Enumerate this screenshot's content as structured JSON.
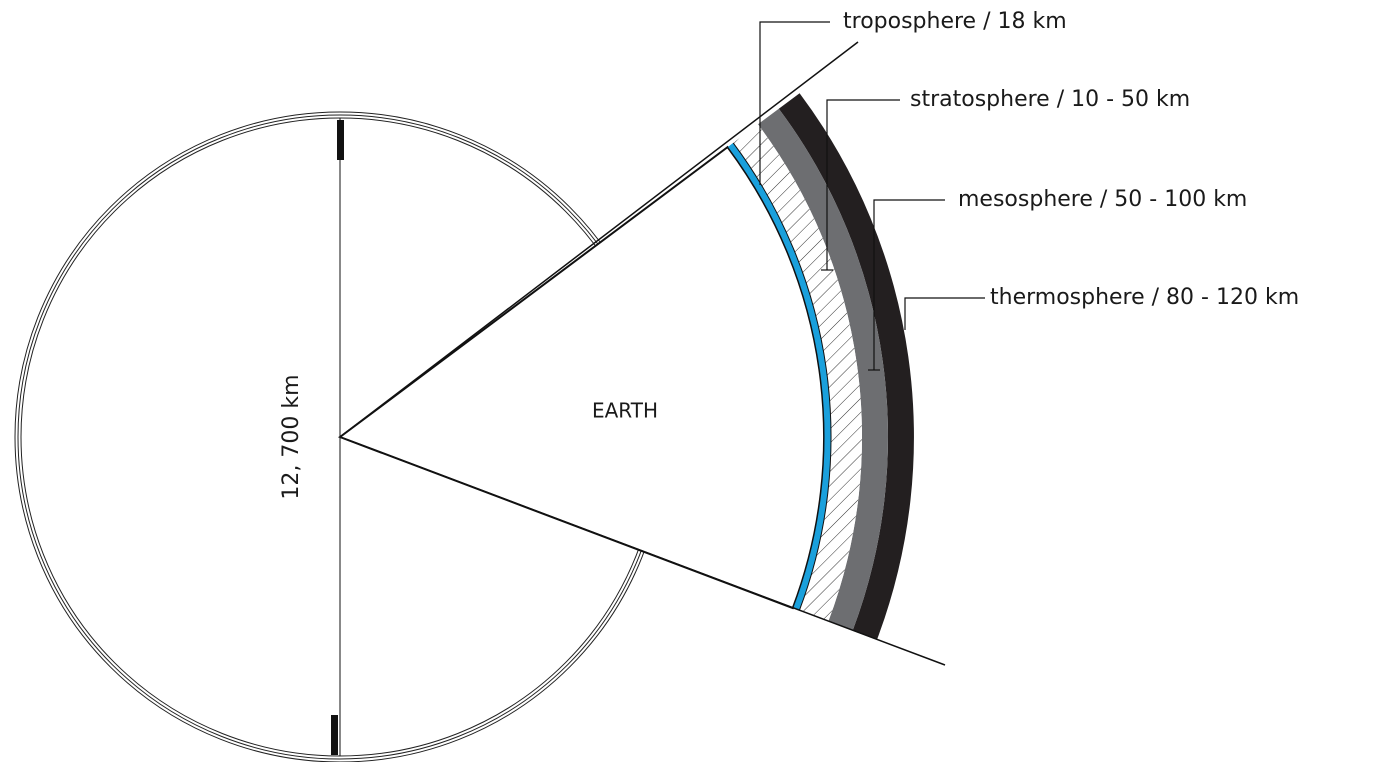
{
  "diagram": {
    "earth_label": "EARTH",
    "diameter_label": "12, 700 km",
    "layers": [
      {
        "label": "troposphere / 18 km"
      },
      {
        "label": "stratosphere / 10 - 50 km"
      },
      {
        "label": "mesosphere / 50 - 100 km"
      },
      {
        "label": "thermosphere / 80 - 120 km"
      }
    ]
  }
}
